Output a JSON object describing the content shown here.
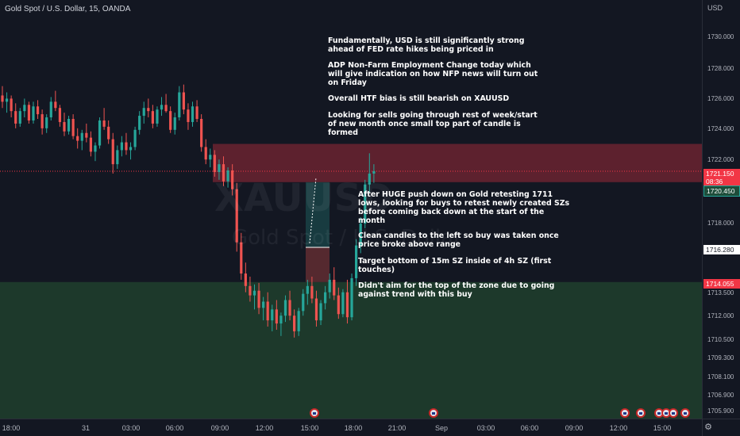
{
  "header": {
    "symbol_title": "Gold Spot / U.S. Dollar, 15, OANDA"
  },
  "watermark": {
    "symbol": "XAUUSD",
    "description": "Gold Spot / U.S. Dollar"
  },
  "price_axis": {
    "currency": "USD",
    "ticks": [
      "1730.000",
      "1728.000",
      "1726.000",
      "1724.000",
      "1722.000",
      "1718.000",
      "1713.500",
      "1712.000",
      "1710.500",
      "1709.300",
      "1708.100",
      "1706.900",
      "1705.900"
    ],
    "badges": {
      "current_price": "1721.150",
      "countdown": "08:36",
      "upper_level": "1720.450",
      "mid_level": "1716.280",
      "lower_level": "1714.055"
    }
  },
  "time_axis": {
    "ticks": [
      "18:00",
      "31",
      "03:00",
      "06:00",
      "09:00",
      "12:00",
      "15:00",
      "18:00",
      "21:00",
      "Sep",
      "03:00",
      "06:00",
      "09:00",
      "12:00",
      "15:00"
    ]
  },
  "notes": {
    "fundamentals": "Fundamentally, USD is still significantly strong\nahead of FED rate hikes being priced in",
    "adp": "ADP Non-Farm Employment Change today which\nwill give indication on how NFP news will turn out\non Friday",
    "htf_bias": "Overall HTF bias is still bearish on XAUUSD",
    "sells": "Looking for sells going through rest of week/start\nof new month once small top part of candle is\nformed",
    "huge_push": "After HUGE push down on Gold retesting 1711\nlows, looking for buys to retest newly created SZs\nbefore coming back down at the start of the\nmonth",
    "clean_candles": "Clean candles to the left so buy was taken once\nprice broke above range",
    "target": "Target bottom of 15m SZ inside of 4h SZ (first\ntouches)",
    "didnt_aim": "Didn't aim for the top of the zone due to going\nagainst trend with this buy"
  },
  "colors": {
    "background": "#131722",
    "bull": "#26a69a",
    "bear": "#ef5350",
    "supply_zone": "#6b2330",
    "demand_zone": "#1f3d2c"
  },
  "chart_data": {
    "type": "candlestick",
    "symbol": "XAUUSD",
    "interval": "15",
    "supply_zone": [
      1720.45,
      1722.9
    ],
    "demand_zone": [
      1705.9,
      1714.055
    ],
    "current_price": 1721.15,
    "position": {
      "entry": 1716.28,
      "target": 1720.45,
      "stop": 1714.055
    },
    "ohlc": [
      [
        1726.0,
        1726.6,
        1725.2,
        1725.6
      ],
      [
        1725.6,
        1726.2,
        1724.9,
        1725.8
      ],
      [
        1725.8,
        1726.0,
        1724.6,
        1725.0
      ],
      [
        1725.0,
        1725.5,
        1723.9,
        1724.2
      ],
      [
        1724.2,
        1725.2,
        1724.0,
        1725.0
      ],
      [
        1725.0,
        1725.8,
        1724.6,
        1725.4
      ],
      [
        1725.4,
        1725.6,
        1724.2,
        1724.4
      ],
      [
        1724.4,
        1725.6,
        1724.2,
        1725.3
      ],
      [
        1725.3,
        1725.7,
        1724.5,
        1724.8
      ],
      [
        1724.8,
        1725.1,
        1723.5,
        1723.9
      ],
      [
        1723.9,
        1724.8,
        1723.6,
        1724.6
      ],
      [
        1724.6,
        1725.9,
        1724.4,
        1725.6
      ],
      [
        1725.6,
        1726.3,
        1725.0,
        1725.2
      ],
      [
        1725.2,
        1725.4,
        1724.0,
        1724.3
      ],
      [
        1724.3,
        1724.9,
        1723.4,
        1723.7
      ],
      [
        1723.7,
        1724.7,
        1723.5,
        1724.5
      ],
      [
        1724.5,
        1724.8,
        1723.2,
        1723.4
      ],
      [
        1723.4,
        1723.9,
        1722.6,
        1723.1
      ],
      [
        1723.1,
        1723.8,
        1722.5,
        1723.6
      ],
      [
        1723.6,
        1724.2,
        1723.0,
        1723.3
      ],
      [
        1723.3,
        1723.7,
        1722.1,
        1722.4
      ],
      [
        1722.4,
        1723.0,
        1721.8,
        1722.8
      ],
      [
        1722.8,
        1724.6,
        1722.6,
        1724.4
      ],
      [
        1724.4,
        1725.2,
        1723.8,
        1724.0
      ],
      [
        1724.0,
        1724.4,
        1722.9,
        1723.2
      ],
      [
        1723.2,
        1723.6,
        1721.0,
        1721.6
      ],
      [
        1721.6,
        1722.8,
        1721.3,
        1722.5
      ],
      [
        1722.5,
        1723.4,
        1722.1,
        1723.0
      ],
      [
        1723.0,
        1723.6,
        1722.2,
        1722.5
      ],
      [
        1722.5,
        1723.0,
        1721.9,
        1722.7
      ],
      [
        1722.7,
        1724.0,
        1722.5,
        1723.8
      ],
      [
        1723.8,
        1725.0,
        1723.5,
        1724.7
      ],
      [
        1724.7,
        1725.6,
        1724.2,
        1725.2
      ],
      [
        1725.2,
        1725.8,
        1724.6,
        1725.0
      ],
      [
        1725.0,
        1725.4,
        1723.9,
        1724.2
      ],
      [
        1724.2,
        1725.3,
        1724.0,
        1725.1
      ],
      [
        1725.1,
        1725.9,
        1724.7,
        1725.4
      ],
      [
        1725.4,
        1726.1,
        1724.9,
        1725.0
      ],
      [
        1725.0,
        1725.3,
        1723.6,
        1723.8
      ],
      [
        1723.8,
        1724.9,
        1723.5,
        1724.6
      ],
      [
        1724.6,
        1726.6,
        1724.4,
        1726.2
      ],
      [
        1726.2,
        1726.7,
        1724.8,
        1725.1
      ],
      [
        1725.1,
        1725.5,
        1723.8,
        1724.3
      ],
      [
        1724.3,
        1725.6,
        1724.0,
        1725.3
      ],
      [
        1725.3,
        1725.7,
        1724.3,
        1724.5
      ],
      [
        1724.5,
        1724.8,
        1722.4,
        1722.7
      ],
      [
        1722.7,
        1723.2,
        1721.6,
        1721.9
      ],
      [
        1721.9,
        1722.6,
        1721.4,
        1722.2
      ],
      [
        1722.2,
        1722.5,
        1720.8,
        1721.1
      ],
      [
        1721.1,
        1721.9,
        1720.6,
        1721.6
      ],
      [
        1721.6,
        1722.1,
        1720.2,
        1720.5
      ],
      [
        1720.5,
        1721.4,
        1720.1,
        1721.2
      ],
      [
        1721.2,
        1721.6,
        1719.6,
        1720.0
      ],
      [
        1720.0,
        1720.4,
        1716.0,
        1716.6
      ],
      [
        1716.6,
        1717.2,
        1714.2,
        1714.6
      ],
      [
        1714.6,
        1715.3,
        1713.4,
        1713.8
      ],
      [
        1713.8,
        1714.4,
        1712.8,
        1713.2
      ],
      [
        1713.2,
        1713.9,
        1712.3,
        1713.5
      ],
      [
        1713.5,
        1714.0,
        1712.0,
        1712.4
      ],
      [
        1712.4,
        1713.1,
        1711.6,
        1712.8
      ],
      [
        1712.8,
        1713.4,
        1711.2,
        1711.6
      ],
      [
        1711.6,
        1712.6,
        1710.9,
        1712.3
      ],
      [
        1712.3,
        1712.9,
        1711.0,
        1711.4
      ],
      [
        1711.4,
        1712.1,
        1710.6,
        1711.9
      ],
      [
        1711.9,
        1713.2,
        1711.5,
        1712.9
      ],
      [
        1712.9,
        1713.5,
        1711.6,
        1711.9
      ],
      [
        1711.9,
        1712.3,
        1710.5,
        1710.9
      ],
      [
        1710.9,
        1712.4,
        1710.6,
        1712.2
      ],
      [
        1712.2,
        1713.6,
        1711.9,
        1713.3
      ],
      [
        1713.3,
        1714.2,
        1712.6,
        1713.8
      ],
      [
        1713.8,
        1714.4,
        1712.7,
        1713.0
      ],
      [
        1713.0,
        1713.5,
        1711.2,
        1711.6
      ],
      [
        1711.6,
        1712.9,
        1711.3,
        1712.7
      ],
      [
        1712.7,
        1713.8,
        1712.3,
        1713.4
      ],
      [
        1713.4,
        1714.6,
        1713.0,
        1714.2
      ],
      [
        1714.2,
        1715.0,
        1712.9,
        1713.2
      ],
      [
        1713.2,
        1713.7,
        1711.7,
        1712.0
      ],
      [
        1712.0,
        1713.6,
        1711.8,
        1713.4
      ],
      [
        1713.4,
        1714.2,
        1711.4,
        1711.8
      ],
      [
        1711.8,
        1714.6,
        1711.6,
        1714.3
      ],
      [
        1714.3,
        1716.8,
        1713.8,
        1716.4
      ],
      [
        1716.4,
        1718.2,
        1715.9,
        1717.8
      ],
      [
        1717.8,
        1720.6,
        1717.5,
        1720.3
      ],
      [
        1720.3,
        1722.3,
        1719.8,
        1721.0
      ],
      [
        1721.0,
        1721.6,
        1720.4,
        1721.15
      ]
    ]
  }
}
